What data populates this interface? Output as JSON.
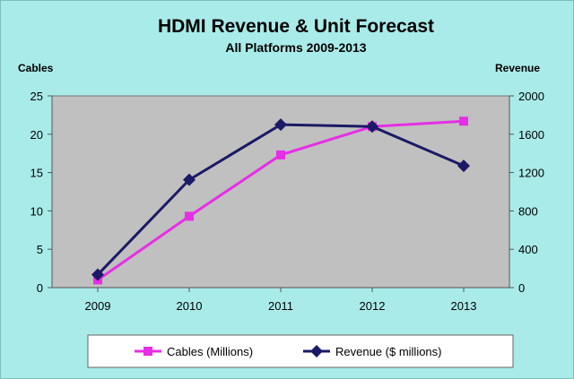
{
  "chart_data": {
    "type": "line",
    "title": "HDMI Revenue & Unit Forecast",
    "subtitle": "All Platforms 2009-2013",
    "x": [
      "2009",
      "2010",
      "2011",
      "2012",
      "2013"
    ],
    "y_left": {
      "label": "Cables",
      "ylim": [
        0,
        25
      ],
      "ticks": [
        "0",
        "5",
        "10",
        "15",
        "20",
        "25"
      ]
    },
    "y_right": {
      "label": "Revenue",
      "ylim": [
        0,
        2000
      ],
      "ticks": [
        "0",
        "400",
        "800",
        "1200",
        "1600",
        "2000"
      ]
    },
    "series": [
      {
        "name": "Cables (Millions)",
        "axis": "left",
        "color": "#e62ee6",
        "marker": "square",
        "values": [
          1,
          9.3,
          17.3,
          21,
          21.7
        ]
      },
      {
        "name": "Revenue ($ millions)",
        "axis": "right",
        "color": "#1a1a66",
        "marker": "diamond",
        "values": [
          135,
          1125,
          1700,
          1680,
          1270
        ]
      }
    ],
    "plot_background": "#c0c0c0",
    "chart_background": "#a9ebe9",
    "grid": false,
    "legend_position": "bottom"
  }
}
